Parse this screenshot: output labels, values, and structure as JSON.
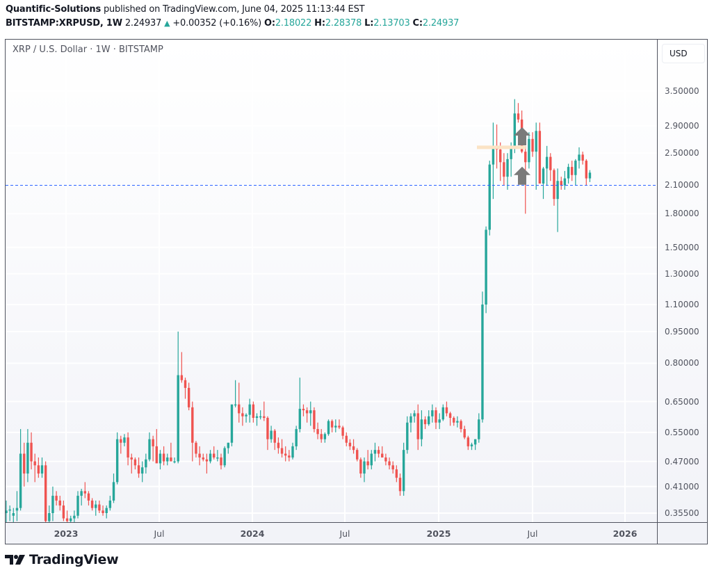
{
  "header": {
    "author": "Quantific-Solutions",
    "published_text": "published on TradingView.com, June 04, 2025 11:13:44 EST",
    "symbol": "BITSTAMP:XRPUSD, 1W",
    "last": "2.24937",
    "change": "+0.00352 (+0.16%)",
    "o_label": "O:",
    "o": "2.18022",
    "h_label": "H:",
    "h": "2.28378",
    "l_label": "L:",
    "l": "2.13703",
    "c_label": "C:",
    "c": "2.24937"
  },
  "chart_legend": "XRP / U.S. Dollar · 1W · BITSTAMP",
  "currency_button": "USD",
  "logo_text": "TradingView",
  "colors": {
    "up": "#26a69a",
    "down": "#ef5350",
    "hline": "#2962ff",
    "zone": "#fbe3c5",
    "arrow": "#7a7a7a"
  },
  "chart_data": {
    "type": "candlestick",
    "title": "XRP / U.S. Dollar · 1W · BITSTAMP",
    "scale": "log",
    "ylim": [
      0.34,
      4.4
    ],
    "yticks": [
      3.5,
      2.9,
      2.5,
      2.1,
      1.8,
      1.5,
      1.3,
      1.1,
      0.95,
      0.8,
      0.65,
      0.55,
      0.47,
      0.41,
      0.355
    ],
    "ytick_labels": [
      "3.50000",
      "2.90000",
      "2.50000",
      "2.10000",
      "1.80000",
      "1.50000",
      "1.30000",
      "1.10000",
      "0.95000",
      "0.80000",
      "0.65000",
      "0.55000",
      "0.47000",
      "0.41000",
      "0.35500"
    ],
    "xticks": [
      {
        "label": "2023",
        "x": 95,
        "bold": true
      },
      {
        "label": "Jul",
        "x": 229,
        "bold": false
      },
      {
        "label": "2024",
        "x": 363,
        "bold": true
      },
      {
        "label": "Jul",
        "x": 496,
        "bold": false
      },
      {
        "label": "2025",
        "x": 631,
        "bold": true
      },
      {
        "label": "Jul",
        "x": 766,
        "bold": false
      },
      {
        "label": "2026",
        "x": 899,
        "bold": true
      }
    ],
    "horizontal_line": {
      "price": 2.1,
      "style": "dashed"
    },
    "zone": {
      "price": 2.58,
      "x1": 686,
      "x2": 756
    },
    "arrows": [
      {
        "x": 751,
        "price": 2.75
      },
      {
        "x": 751,
        "price": 2.22
      }
    ],
    "x0": 9,
    "dx": 5.15,
    "ohlc": [
      [
        0.355,
        0.38,
        0.33,
        0.36
      ],
      [
        0.36,
        0.37,
        0.34,
        0.362
      ],
      [
        0.35,
        0.365,
        0.33,
        0.355
      ],
      [
        0.36,
        0.4,
        0.34,
        0.365
      ],
      [
        0.365,
        0.56,
        0.36,
        0.49
      ],
      [
        0.49,
        0.52,
        0.41,
        0.44
      ],
      [
        0.44,
        0.56,
        0.42,
        0.52
      ],
      [
        0.52,
        0.55,
        0.45,
        0.47
      ],
      [
        0.47,
        0.49,
        0.42,
        0.46
      ],
      [
        0.46,
        0.48,
        0.43,
        0.44
      ],
      [
        0.44,
        0.48,
        0.43,
        0.46
      ],
      [
        0.46,
        0.47,
        0.3,
        0.34
      ],
      [
        0.34,
        0.37,
        0.33,
        0.355
      ],
      [
        0.355,
        0.41,
        0.34,
        0.39
      ],
      [
        0.39,
        0.4,
        0.37,
        0.38
      ],
      [
        0.38,
        0.39,
        0.36,
        0.37
      ],
      [
        0.37,
        0.38,
        0.34,
        0.345
      ],
      [
        0.345,
        0.36,
        0.33,
        0.34
      ],
      [
        0.34,
        0.35,
        0.33,
        0.345
      ],
      [
        0.345,
        0.36,
        0.335,
        0.35
      ],
      [
        0.35,
        0.4,
        0.345,
        0.39
      ],
      [
        0.39,
        0.405,
        0.37,
        0.4
      ],
      [
        0.4,
        0.42,
        0.385,
        0.395
      ],
      [
        0.395,
        0.4,
        0.37,
        0.38
      ],
      [
        0.38,
        0.385,
        0.36,
        0.365
      ],
      [
        0.365,
        0.38,
        0.35,
        0.372
      ],
      [
        0.372,
        0.38,
        0.355,
        0.36
      ],
      [
        0.36,
        0.37,
        0.35,
        0.355
      ],
      [
        0.355,
        0.37,
        0.345,
        0.365
      ],
      [
        0.365,
        0.39,
        0.36,
        0.38
      ],
      [
        0.38,
        0.44,
        0.375,
        0.42
      ],
      [
        0.42,
        0.55,
        0.415,
        0.53
      ],
      [
        0.53,
        0.54,
        0.49,
        0.52
      ],
      [
        0.52,
        0.545,
        0.51,
        0.535
      ],
      [
        0.535,
        0.55,
        0.46,
        0.48
      ],
      [
        0.48,
        0.49,
        0.44,
        0.475
      ],
      [
        0.475,
        0.48,
        0.45,
        0.46
      ],
      [
        0.46,
        0.48,
        0.43,
        0.44
      ],
      [
        0.44,
        0.47,
        0.42,
        0.455
      ],
      [
        0.455,
        0.49,
        0.44,
        0.475
      ],
      [
        0.475,
        0.55,
        0.47,
        0.53
      ],
      [
        0.53,
        0.54,
        0.47,
        0.51
      ],
      [
        0.51,
        0.56,
        0.495,
        0.465
      ],
      [
        0.465,
        0.5,
        0.45,
        0.49
      ],
      [
        0.49,
        0.51,
        0.46,
        0.47
      ],
      [
        0.47,
        0.49,
        0.46,
        0.48
      ],
      [
        0.48,
        0.52,
        0.475,
        0.47
      ],
      [
        0.47,
        0.48,
        0.465,
        0.47
      ],
      [
        0.47,
        0.95,
        0.465,
        0.75
      ],
      [
        0.75,
        0.85,
        0.72,
        0.73
      ],
      [
        0.73,
        0.74,
        0.66,
        0.7
      ],
      [
        0.7,
        0.72,
        0.62,
        0.63
      ],
      [
        0.63,
        0.65,
        0.47,
        0.52
      ],
      [
        0.52,
        0.525,
        0.48,
        0.49
      ],
      [
        0.49,
        0.51,
        0.46,
        0.48
      ],
      [
        0.48,
        0.49,
        0.47,
        0.475
      ],
      [
        0.475,
        0.49,
        0.44,
        0.47
      ],
      [
        0.47,
        0.5,
        0.465,
        0.49
      ],
      [
        0.49,
        0.51,
        0.475,
        0.48
      ],
      [
        0.48,
        0.5,
        0.47,
        0.48
      ],
      [
        0.48,
        0.49,
        0.45,
        0.46
      ],
      [
        0.46,
        0.51,
        0.455,
        0.505
      ],
      [
        0.505,
        0.52,
        0.49,
        0.52
      ],
      [
        0.52,
        0.6,
        0.51,
        0.64
      ],
      [
        0.64,
        0.73,
        0.63,
        0.64
      ],
      [
        0.64,
        0.72,
        0.58,
        0.61
      ],
      [
        0.61,
        0.63,
        0.57,
        0.6
      ],
      [
        0.6,
        0.61,
        0.58,
        0.605
      ],
      [
        0.605,
        0.66,
        0.58,
        0.64
      ],
      [
        0.64,
        0.65,
        0.58,
        0.595
      ],
      [
        0.595,
        0.61,
        0.57,
        0.6
      ],
      [
        0.6,
        0.62,
        0.59,
        0.6
      ],
      [
        0.6,
        0.65,
        0.585,
        0.595
      ],
      [
        0.595,
        0.6,
        0.5,
        0.53
      ],
      [
        0.53,
        0.57,
        0.52,
        0.555
      ],
      [
        0.555,
        0.56,
        0.5,
        0.52
      ],
      [
        0.52,
        0.535,
        0.49,
        0.505
      ],
      [
        0.505,
        0.53,
        0.48,
        0.49
      ],
      [
        0.49,
        0.51,
        0.47,
        0.485
      ],
      [
        0.485,
        0.5,
        0.47,
        0.48
      ],
      [
        0.48,
        0.52,
        0.475,
        0.51
      ],
      [
        0.51,
        0.57,
        0.5,
        0.56
      ],
      [
        0.56,
        0.74,
        0.55,
        0.625
      ],
      [
        0.625,
        0.64,
        0.6,
        0.62
      ],
      [
        0.62,
        0.63,
        0.58,
        0.61
      ],
      [
        0.61,
        0.65,
        0.57,
        0.62
      ],
      [
        0.62,
        0.63,
        0.55,
        0.56
      ],
      [
        0.56,
        0.58,
        0.53,
        0.545
      ],
      [
        0.545,
        0.56,
        0.52,
        0.53
      ],
      [
        0.53,
        0.55,
        0.52,
        0.545
      ],
      [
        0.545,
        0.59,
        0.54,
        0.585
      ],
      [
        0.585,
        0.59,
        0.55,
        0.565
      ],
      [
        0.565,
        0.59,
        0.55,
        0.57
      ],
      [
        0.57,
        0.59,
        0.56,
        0.565
      ],
      [
        0.565,
        0.57,
        0.53,
        0.54
      ],
      [
        0.54,
        0.55,
        0.51,
        0.52
      ],
      [
        0.52,
        0.53,
        0.5,
        0.51
      ],
      [
        0.51,
        0.53,
        0.49,
        0.5
      ],
      [
        0.5,
        0.505,
        0.47,
        0.475
      ],
      [
        0.475,
        0.48,
        0.43,
        0.44
      ],
      [
        0.44,
        0.48,
        0.42,
        0.47
      ],
      [
        0.47,
        0.5,
        0.45,
        0.46
      ],
      [
        0.46,
        0.5,
        0.45,
        0.49
      ],
      [
        0.49,
        0.52,
        0.47,
        0.5
      ],
      [
        0.5,
        0.51,
        0.48,
        0.49
      ],
      [
        0.49,
        0.51,
        0.48,
        0.48
      ],
      [
        0.48,
        0.49,
        0.46,
        0.47
      ],
      [
        0.47,
        0.48,
        0.45,
        0.46
      ],
      [
        0.46,
        0.47,
        0.44,
        0.45
      ],
      [
        0.45,
        0.46,
        0.42,
        0.43
      ],
      [
        0.43,
        0.44,
        0.39,
        0.4
      ],
      [
        0.4,
        0.52,
        0.39,
        0.5
      ],
      [
        0.5,
        0.6,
        0.49,
        0.58
      ],
      [
        0.58,
        0.61,
        0.55,
        0.6
      ],
      [
        0.6,
        0.62,
        0.58,
        0.61
      ],
      [
        0.61,
        0.64,
        0.5,
        0.53
      ],
      [
        0.53,
        0.62,
        0.51,
        0.59
      ],
      [
        0.59,
        0.6,
        0.56,
        0.575
      ],
      [
        0.575,
        0.62,
        0.57,
        0.6
      ],
      [
        0.6,
        0.64,
        0.58,
        0.62
      ],
      [
        0.62,
        0.63,
        0.56,
        0.58
      ],
      [
        0.58,
        0.61,
        0.56,
        0.59
      ],
      [
        0.59,
        0.64,
        0.585,
        0.63
      ],
      [
        0.63,
        0.65,
        0.6,
        0.61
      ],
      [
        0.61,
        0.615,
        0.57,
        0.595
      ],
      [
        0.595,
        0.6,
        0.57,
        0.58
      ],
      [
        0.58,
        0.6,
        0.565,
        0.585
      ],
      [
        0.585,
        0.59,
        0.55,
        0.56
      ],
      [
        0.56,
        0.57,
        0.53,
        0.535
      ],
      [
        0.535,
        0.54,
        0.5,
        0.51
      ],
      [
        0.51,
        0.52,
        0.5,
        0.515
      ],
      [
        0.515,
        0.53,
        0.5,
        0.53
      ],
      [
        0.53,
        0.61,
        0.52,
        0.59
      ],
      [
        0.59,
        1.18,
        0.58,
        1.1
      ],
      [
        1.1,
        1.68,
        1.05,
        1.65
      ],
      [
        1.65,
        2.4,
        1.6,
        2.35
      ],
      [
        2.35,
        2.95,
        1.95,
        2.6
      ],
      [
        2.6,
        2.92,
        2.3,
        2.55
      ],
      [
        2.55,
        2.65,
        2.15,
        2.38
      ],
      [
        2.38,
        2.5,
        2.1,
        2.2
      ],
      [
        2.2,
        2.5,
        2.05,
        2.42
      ],
      [
        2.42,
        2.65,
        2.2,
        2.58
      ],
      [
        2.58,
        3.35,
        2.5,
        3.1
      ],
      [
        3.1,
        3.28,
        2.95,
        3.0
      ],
      [
        3.0,
        3.15,
        2.5,
        2.52
      ],
      [
        2.52,
        2.6,
        1.8,
        2.38
      ],
      [
        2.38,
        2.8,
        2.3,
        2.7
      ],
      [
        2.7,
        2.8,
        2.45,
        2.52
      ],
      [
        2.52,
        2.95,
        2.05,
        2.82
      ],
      [
        2.82,
        2.95,
        2.12,
        2.12
      ],
      [
        2.12,
        2.32,
        1.95,
        2.3
      ],
      [
        2.3,
        2.6,
        2.1,
        2.45
      ],
      [
        2.45,
        2.5,
        2.15,
        2.28
      ],
      [
        2.28,
        2.3,
        1.88,
        1.95
      ],
      [
        1.95,
        2.3,
        1.63,
        2.15
      ],
      [
        2.15,
        2.2,
        2.05,
        2.1
      ],
      [
        2.1,
        2.27,
        2.05,
        2.18
      ],
      [
        2.18,
        2.36,
        2.12,
        2.32
      ],
      [
        2.32,
        2.4,
        2.15,
        2.22
      ],
      [
        2.22,
        2.42,
        2.1,
        2.4
      ],
      [
        2.4,
        2.58,
        2.3,
        2.48
      ],
      [
        2.48,
        2.52,
        2.35,
        2.4
      ],
      [
        2.4,
        2.42,
        2.1,
        2.18
      ],
      [
        2.18,
        2.28,
        2.137,
        2.249
      ]
    ]
  }
}
